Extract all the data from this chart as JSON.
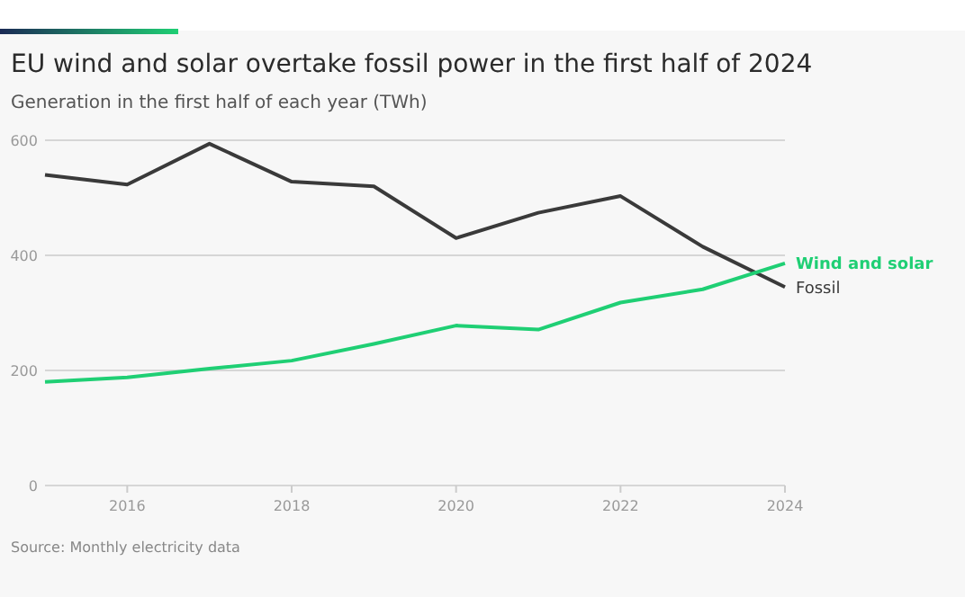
{
  "chart_data": {
    "type": "line",
    "title": "EU wind and solar overtake fossil power in the first half of 2024",
    "subtitle": "Generation in the first half of each year (TWh)",
    "x": [
      2015,
      2016,
      2017,
      2018,
      2019,
      2020,
      2021,
      2022,
      2023,
      2024
    ],
    "series": [
      {
        "name": "Fossil",
        "color": "#3a3a3a",
        "values": [
          540,
          523,
          594,
          528,
          520,
          430,
          474,
          503,
          415,
          345
        ]
      },
      {
        "name": "Wind and solar",
        "color": "#1fcf74",
        "values": [
          180,
          188,
          203,
          217,
          246,
          278,
          271,
          318,
          341,
          386
        ]
      }
    ],
    "xlim": [
      2015,
      2024
    ],
    "xticks": [
      2016,
      2018,
      2020,
      2022,
      2024
    ],
    "ylim": [
      0,
      600
    ],
    "yticks": [
      0,
      200,
      400,
      600
    ],
    "grid": "y",
    "legend": "right",
    "marker": "none",
    "line_style": "solid",
    "annotations": [
      "Source: Monthly electricity data"
    ]
  }
}
